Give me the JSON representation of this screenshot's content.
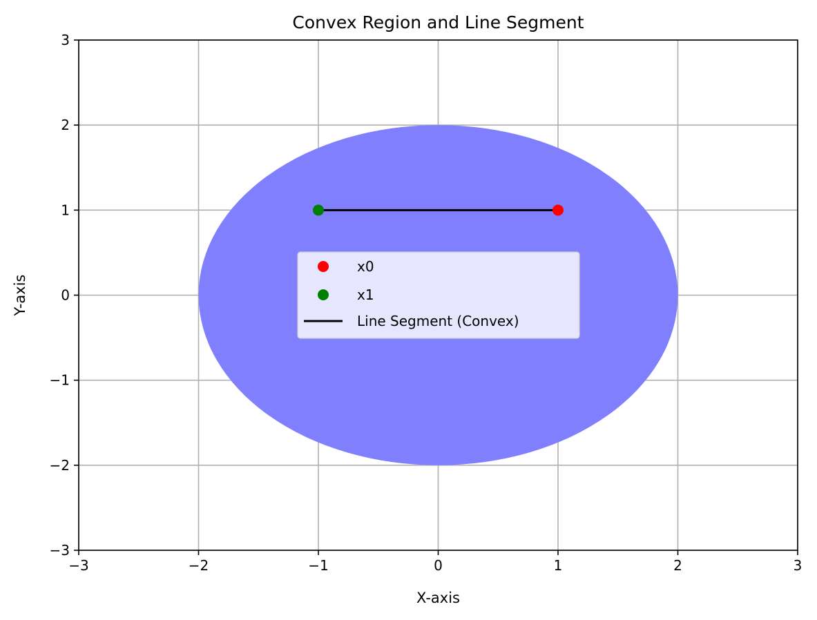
{
  "chart_data": {
    "type": "scatter",
    "title": "Convex Region and Line Segment",
    "xlabel": "X-axis",
    "ylabel": "Y-axis",
    "xlim": [
      -3,
      3
    ],
    "ylim": [
      -3,
      3
    ],
    "xticks": [
      -3,
      -2,
      -1,
      0,
      1,
      2,
      3
    ],
    "yticks": [
      -3,
      -2,
      -1,
      0,
      1,
      2,
      3
    ],
    "xtick_labels": [
      "−3",
      "−2",
      "−1",
      "0",
      "1",
      "2",
      "3"
    ],
    "ytick_labels": [
      "−3",
      "−2",
      "−1",
      "0",
      "1",
      "2",
      "3"
    ],
    "grid": true,
    "legend_position": "center",
    "region": {
      "shape": "ellipse",
      "center": [
        0,
        0
      ],
      "x_radius": 2,
      "y_radius": 2,
      "color": "#8080ff"
    },
    "points": [
      {
        "name": "x0",
        "x": 1,
        "y": 1,
        "color": "#ff0000"
      },
      {
        "name": "x1",
        "x": -1,
        "y": 1,
        "color": "#008000"
      }
    ],
    "line": {
      "name": "Line Segment (Convex)",
      "x": [
        -1,
        1
      ],
      "y": [
        1,
        1
      ],
      "color": "#000000"
    }
  }
}
